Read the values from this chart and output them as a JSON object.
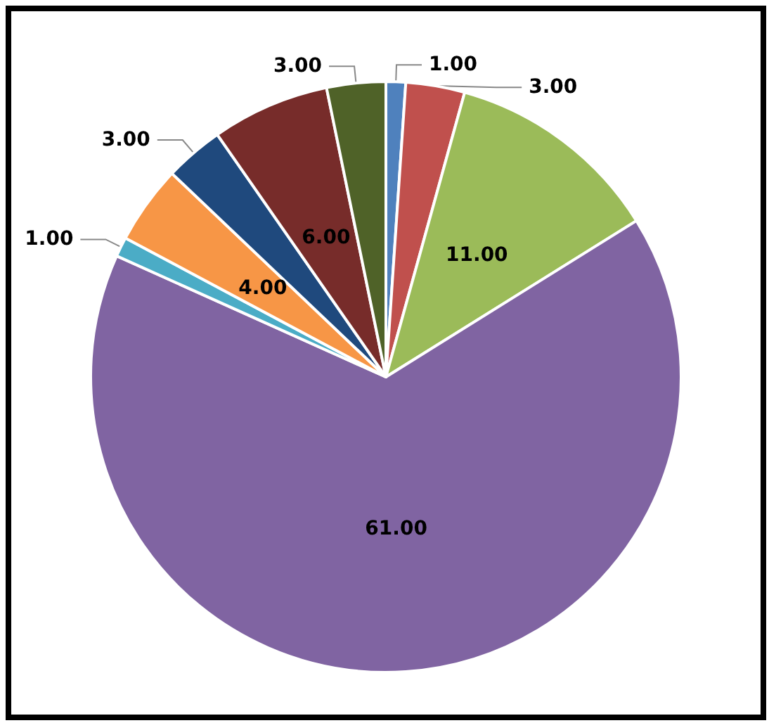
{
  "chart_data": {
    "type": "pie",
    "categories": [
      null,
      null,
      null,
      null,
      null,
      null,
      null,
      null,
      null
    ],
    "values": [
      1,
      3,
      11,
      61,
      1,
      4,
      3,
      6,
      3
    ],
    "colors": [
      "#4f81bd",
      "#c0504d",
      "#9bbb59",
      "#8064a2",
      "#4bacc6",
      "#f79646",
      "#1f497d",
      "#772c2a",
      "#4f6228"
    ],
    "value_labels": [
      "1.00",
      "3.00",
      "11.00",
      "61.00",
      "1.00",
      "4.00",
      "3.00",
      "6.00",
      "3.00"
    ]
  }
}
